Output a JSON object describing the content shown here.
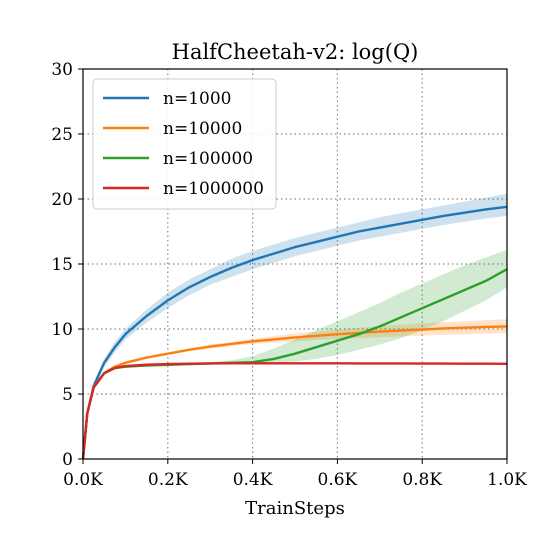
{
  "chart_data": {
    "type": "line",
    "title": "HalfCheetah-v2: log(Q)",
    "xlabel": "TrainSteps",
    "ylabel": "",
    "xlim": [
      0,
      1000
    ],
    "ylim": [
      0,
      30
    ],
    "x_ticks": [
      0,
      200,
      400,
      600,
      800,
      1000
    ],
    "x_tick_labels": [
      "0.0K",
      "0.2K",
      "0.4K",
      "0.6K",
      "0.8K",
      "1.0K"
    ],
    "y_ticks": [
      0,
      5,
      10,
      15,
      20,
      25,
      30
    ],
    "y_tick_labels": [
      "0",
      "5",
      "10",
      "15",
      "20",
      "25",
      "30"
    ],
    "grid": true,
    "legend_position": "top-left",
    "x": [
      0,
      10,
      25,
      50,
      75,
      100,
      150,
      200,
      250,
      300,
      350,
      400,
      450,
      500,
      550,
      600,
      650,
      700,
      750,
      800,
      850,
      900,
      950,
      1000
    ],
    "series": [
      {
        "name": "n=1000",
        "color": "#1f77b4",
        "values": [
          0,
          3.5,
          5.6,
          7.4,
          8.6,
          9.6,
          11.0,
          12.2,
          13.2,
          14.0,
          14.7,
          15.3,
          15.8,
          16.3,
          16.7,
          17.1,
          17.5,
          17.8,
          18.1,
          18.4,
          18.7,
          18.95,
          19.2,
          19.4
        ],
        "lower": [
          0,
          3.3,
          5.3,
          7.1,
          8.2,
          9.2,
          10.5,
          11.6,
          12.6,
          13.4,
          14.0,
          14.6,
          15.1,
          15.6,
          16.0,
          16.4,
          16.8,
          17.1,
          17.4,
          17.7,
          18.0,
          18.25,
          18.5,
          18.7
        ],
        "upper": [
          0,
          3.7,
          5.9,
          7.7,
          9.0,
          10.0,
          11.5,
          12.8,
          13.8,
          14.6,
          15.4,
          16.0,
          16.5,
          17.0,
          17.4,
          17.8,
          18.2,
          18.6,
          18.9,
          19.2,
          19.5,
          19.8,
          20.1,
          20.4
        ]
      },
      {
        "name": "n=10000",
        "color": "#ff7f0e",
        "values": [
          0,
          3.5,
          5.5,
          6.6,
          7.1,
          7.4,
          7.8,
          8.1,
          8.4,
          8.65,
          8.85,
          9.05,
          9.2,
          9.35,
          9.48,
          9.6,
          9.7,
          9.8,
          9.88,
          9.96,
          10.04,
          10.1,
          10.16,
          10.2
        ],
        "lower": [
          0,
          3.4,
          5.4,
          6.5,
          7.0,
          7.3,
          7.7,
          8.0,
          8.3,
          8.5,
          8.7,
          8.85,
          8.95,
          9.05,
          9.15,
          9.22,
          9.3,
          9.37,
          9.43,
          9.49,
          9.55,
          9.6,
          9.64,
          9.68
        ],
        "upper": [
          0,
          3.6,
          5.6,
          6.7,
          7.2,
          7.5,
          7.9,
          8.2,
          8.5,
          8.8,
          9.0,
          9.25,
          9.45,
          9.65,
          9.8,
          9.95,
          10.1,
          10.22,
          10.33,
          10.44,
          10.53,
          10.6,
          10.68,
          10.75
        ]
      },
      {
        "name": "n=100000",
        "color": "#2ca02c",
        "values": [
          0,
          3.5,
          5.5,
          6.6,
          7.0,
          7.1,
          7.2,
          7.25,
          7.3,
          7.35,
          7.4,
          7.45,
          7.7,
          8.1,
          8.6,
          9.1,
          9.6,
          10.2,
          10.9,
          11.6,
          12.3,
          13.0,
          13.7,
          14.6
        ],
        "lower": [
          0,
          3.4,
          5.4,
          6.5,
          6.9,
          7.0,
          7.1,
          7.15,
          7.2,
          7.25,
          7.3,
          7.35,
          7.4,
          7.5,
          7.7,
          8.0,
          8.4,
          8.8,
          9.3,
          9.9,
          10.6,
          11.4,
          12.2,
          13.2
        ],
        "upper": [
          0,
          3.6,
          5.6,
          6.7,
          7.1,
          7.2,
          7.3,
          7.35,
          7.4,
          7.45,
          7.6,
          7.9,
          8.5,
          9.2,
          9.9,
          10.6,
          11.3,
          12.0,
          12.8,
          13.5,
          14.2,
          14.9,
          15.5,
          16.1
        ]
      },
      {
        "name": "n=1000000",
        "color": "#d62728",
        "values": [
          0,
          3.5,
          5.5,
          6.6,
          7.0,
          7.15,
          7.25,
          7.3,
          7.33,
          7.35,
          7.36,
          7.36,
          7.36,
          7.36,
          7.36,
          7.36,
          7.35,
          7.35,
          7.35,
          7.34,
          7.34,
          7.33,
          7.33,
          7.32
        ],
        "lower": [
          0,
          3.45,
          5.45,
          6.55,
          6.95,
          7.1,
          7.2,
          7.25,
          7.28,
          7.3,
          7.31,
          7.31,
          7.31,
          7.31,
          7.31,
          7.31,
          7.3,
          7.3,
          7.3,
          7.29,
          7.29,
          7.28,
          7.28,
          7.27
        ],
        "upper": [
          0,
          3.55,
          5.55,
          6.65,
          7.05,
          7.2,
          7.3,
          7.35,
          7.38,
          7.4,
          7.41,
          7.41,
          7.41,
          7.41,
          7.41,
          7.41,
          7.4,
          7.4,
          7.4,
          7.39,
          7.39,
          7.38,
          7.38,
          7.37
        ]
      }
    ]
  }
}
